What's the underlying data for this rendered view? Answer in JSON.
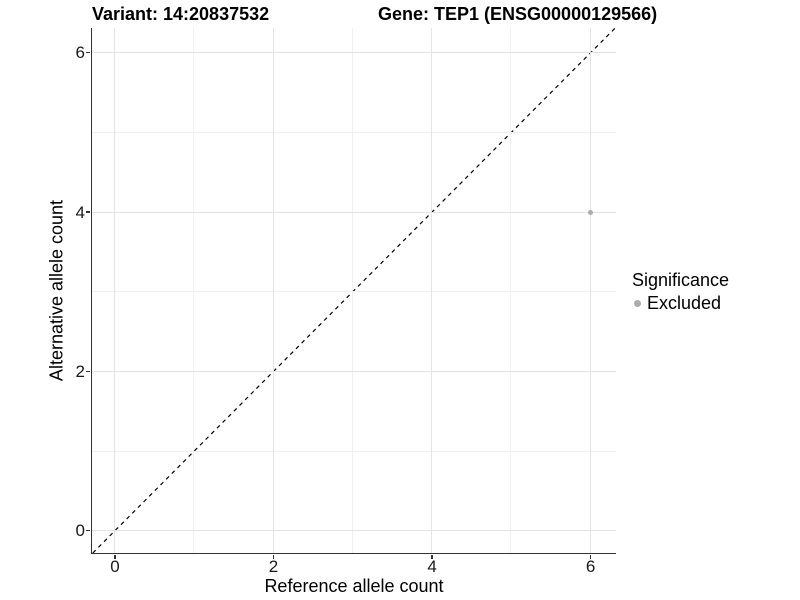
{
  "titles": {
    "variant": "Variant: 14:20837532",
    "gene": "Gene: TEP1 (ENSG00000129566)"
  },
  "chart_data": {
    "type": "scatter",
    "xlabel": "Reference allele count",
    "ylabel": "Alternative allele count",
    "xlim": [
      -0.29,
      6.32
    ],
    "ylim": [
      -0.28,
      6.31
    ],
    "x_major_ticks": [
      0,
      2,
      4,
      6
    ],
    "y_major_ticks": [
      0,
      2,
      4,
      6
    ],
    "x_minor_gridlines": [
      1,
      3,
      5
    ],
    "y_minor_gridlines": [
      1,
      3,
      5
    ],
    "grid": true,
    "identity_line": {
      "style": "dashed",
      "from": -0.28,
      "to": 6.31,
      "color": "#000000"
    },
    "series": [
      {
        "name": "Excluded",
        "color": "#ababab",
        "points": [
          {
            "x": 6,
            "y": 4
          }
        ]
      }
    ],
    "legend": {
      "title": "Significance",
      "position": "right",
      "items": [
        {
          "label": "Excluded",
          "color": "#ababab"
        }
      ]
    }
  },
  "colors": {
    "grid_major": "#e4e4e4",
    "grid_minor": "#f0f0f0",
    "axis_line": "#333333",
    "point": "#ababab",
    "text": "#000000"
  }
}
